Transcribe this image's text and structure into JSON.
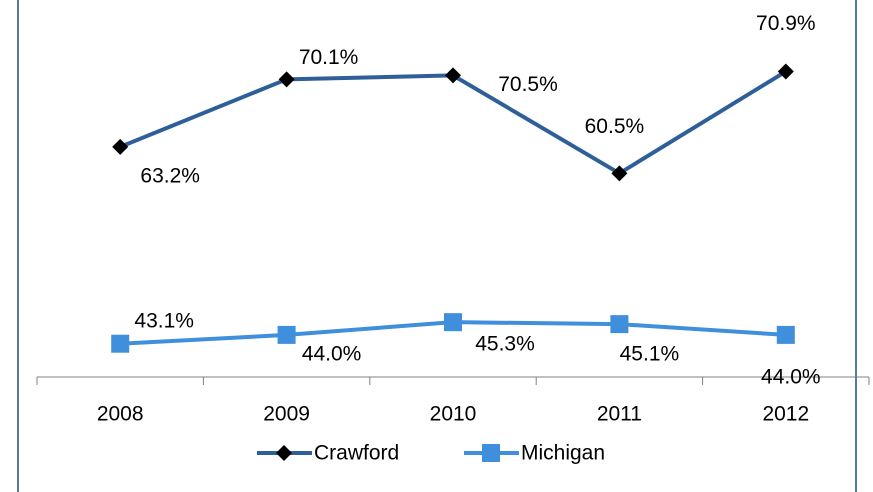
{
  "chart_data": {
    "type": "line",
    "categories": [
      "2008",
      "2009",
      "2010",
      "2011",
      "2012"
    ],
    "series": [
      {
        "name": "Crawford",
        "color": "#2f5f98",
        "marker": "diamond",
        "marker_color": "#000000",
        "values": [
          63.2,
          70.1,
          70.5,
          60.5,
          70.9
        ],
        "value_labels": [
          "63.2%",
          "70.1%",
          "70.5%",
          "60.5%",
          "70.9%"
        ]
      },
      {
        "name": "Michigan",
        "color": "#3f8fdc",
        "marker": "square",
        "marker_color": "#3f8fdc",
        "values": [
          43.1,
          44.0,
          45.3,
          45.1,
          44.0
        ],
        "value_labels": [
          "43.1%",
          "44.0%",
          "45.3%",
          "45.1%",
          "44.0%"
        ]
      }
    ],
    "ylim": [
      39.7,
      78.2
    ],
    "legend": "bottom"
  }
}
